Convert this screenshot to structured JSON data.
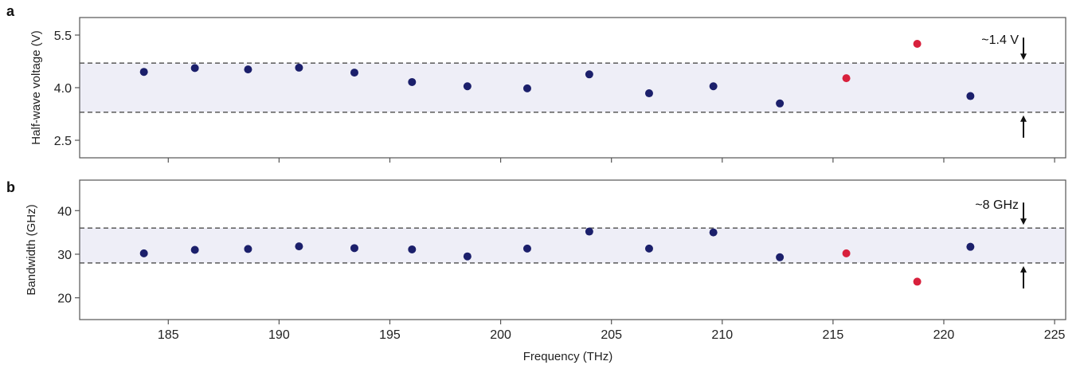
{
  "figure": {
    "xlabel": "Frequency (THz)"
  },
  "chart_data": [
    {
      "panel": "a",
      "type": "scatter",
      "ylabel": "Half-wave voltage (V)",
      "xlim": [
        181,
        225.5
      ],
      "ylim": [
        2.0,
        6.0
      ],
      "xticks": [
        185,
        190,
        195,
        200,
        205,
        210,
        215,
        220,
        225
      ],
      "yticks": [
        2.5,
        4.0,
        5.5
      ],
      "ytick_labels": [
        "2.5",
        "4.0",
        "5.5"
      ],
      "band": [
        3.3,
        4.7
      ],
      "band_annotation": "~1.4 V",
      "series": [
        {
          "color": "#1b1f6b",
          "x": [
            183.9,
            186.2,
            188.6,
            190.9,
            193.4,
            196.0,
            198.5,
            201.2,
            204.0,
            206.7,
            209.6,
            212.6,
            221.2
          ],
          "y": [
            4.45,
            4.56,
            4.52,
            4.57,
            4.43,
            4.16,
            4.04,
            3.98,
            4.38,
            3.84,
            4.04,
            3.55,
            3.76
          ]
        },
        {
          "color": "#d8203c",
          "x": [
            215.6,
            218.8
          ],
          "y": [
            4.27,
            5.25
          ]
        }
      ]
    },
    {
      "panel": "b",
      "type": "scatter",
      "ylabel": "Bandwidth (GHz)",
      "xlim": [
        181,
        225.5
      ],
      "ylim": [
        15,
        47
      ],
      "xticks": [
        185,
        190,
        195,
        200,
        205,
        210,
        215,
        220,
        225
      ],
      "xtick_labels": [
        "185",
        "190",
        "195",
        "200",
        "205",
        "210",
        "215",
        "220",
        "225"
      ],
      "yticks": [
        20,
        30,
        40
      ],
      "ytick_labels": [
        "20",
        "30",
        "40"
      ],
      "band": [
        28,
        36
      ],
      "band_annotation": "~8 GHz",
      "series": [
        {
          "color": "#1b1f6b",
          "x": [
            183.9,
            186.2,
            188.6,
            190.9,
            193.4,
            196.0,
            198.5,
            201.2,
            204.0,
            206.7,
            209.6,
            212.6,
            221.2
          ],
          "y": [
            30.2,
            31.0,
            31.2,
            31.8,
            31.4,
            31.1,
            29.5,
            31.3,
            35.2,
            31.3,
            35.0,
            29.3,
            31.7
          ]
        },
        {
          "color": "#d8203c",
          "x": [
            215.6,
            218.8
          ],
          "y": [
            30.2,
            23.7
          ]
        }
      ]
    }
  ]
}
